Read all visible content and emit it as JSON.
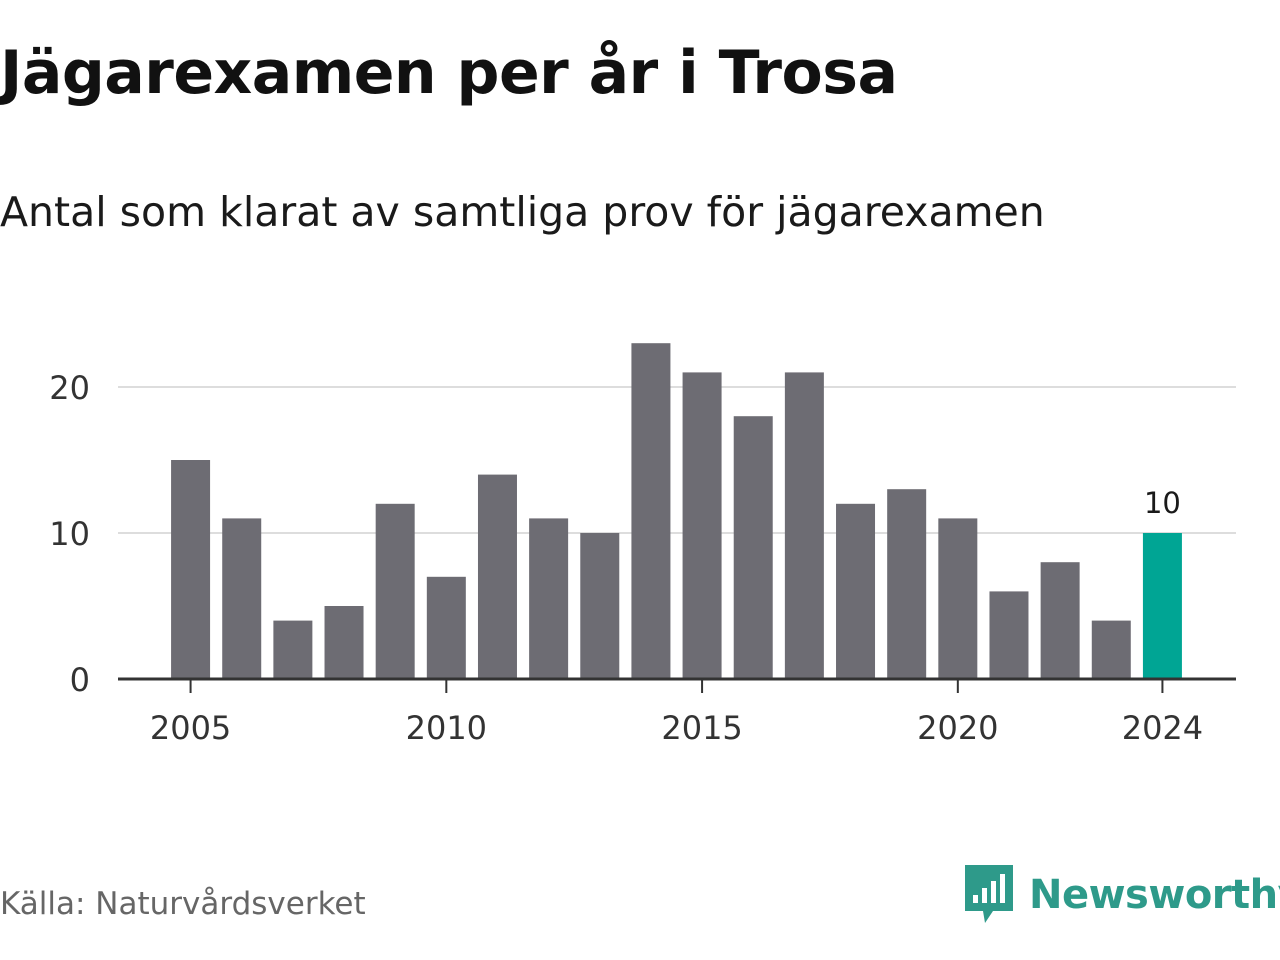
{
  "header": {
    "title": "Jägarexamen per år i Trosa",
    "subtitle": "Antal som klarat av samtliga prov för jägarexamen"
  },
  "footer": {
    "source": "Källa: Naturvårdsverket",
    "brand": "Newsworthy",
    "brand_icon": "newsworthy-logo-icon"
  },
  "colors": {
    "bar": "#6d6c73",
    "highlight": "#00a594",
    "grid": "#dddddd",
    "axis": "#333333",
    "brand": "#2e9a8a"
  },
  "chart_data": {
    "type": "bar",
    "title": "Jägarexamen per år i Trosa",
    "subtitle": "Antal som klarat av samtliga prov för jägarexamen",
    "xlabel": "",
    "ylabel": "",
    "categories": [
      "2005",
      "2006",
      "2007",
      "2008",
      "2009",
      "2010",
      "2011",
      "2012",
      "2013",
      "2014",
      "2015",
      "2016",
      "2017",
      "2018",
      "2019",
      "2020",
      "2021",
      "2022",
      "2023",
      "2024"
    ],
    "values": [
      15,
      11,
      4,
      5,
      12,
      7,
      14,
      11,
      10,
      23,
      21,
      18,
      21,
      12,
      13,
      11,
      6,
      8,
      4,
      10
    ],
    "highlight_index": 19,
    "data_labels": [
      {
        "index": 19,
        "text": "10"
      }
    ],
    "x_ticks": [
      "2005",
      "2010",
      "2015",
      "2020",
      "2024"
    ],
    "y_ticks": [
      0,
      10,
      20
    ],
    "ylim": [
      0,
      25
    ],
    "grid": true,
    "legend": "none"
  }
}
